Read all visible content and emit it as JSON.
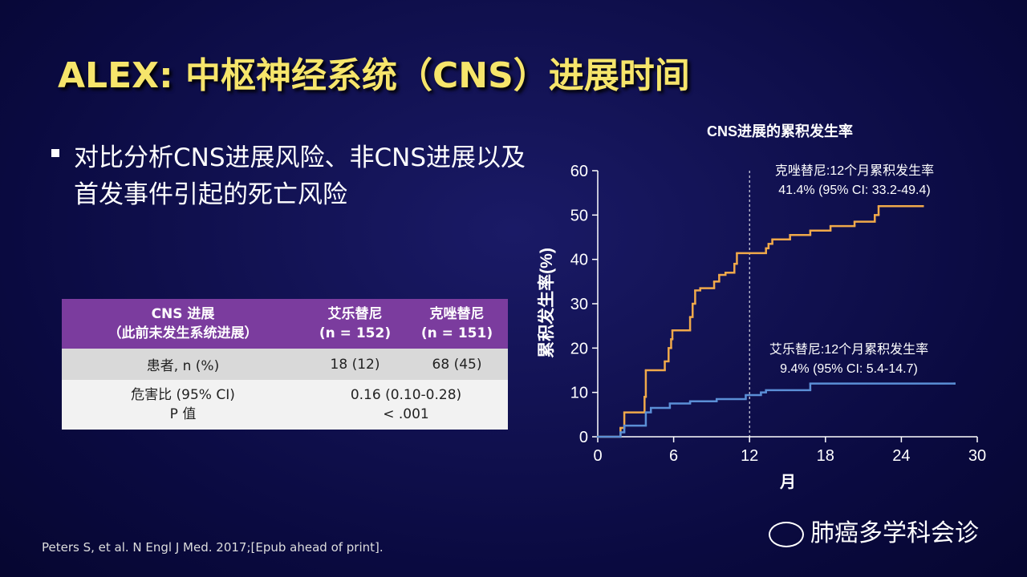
{
  "title": "ALEX: 中枢神经系统（CNS）进展时间",
  "bullet": "对比分析CNS进展风险、非CNS进展以及首发事件引起的死亡风险",
  "table": {
    "header": [
      [
        "CNS 进展",
        "（此前未发生系统进展）"
      ],
      [
        "艾乐替尼",
        "(n = 152)"
      ],
      [
        "克唑替尼",
        "(n = 151)"
      ]
    ],
    "rows": [
      [
        "患者, n (%)",
        "18 (12)",
        "68 (45)"
      ],
      [
        [
          "危害比 (95% CI)",
          "P 值"
        ],
        [
          "0.16 (0.10-0.28)",
          "< .001"
        ]
      ]
    ]
  },
  "chart_data": {
    "type": "step",
    "title": "CNS进展的累积发生率",
    "xlabel": "月",
    "ylabel": "累积发生率(%)",
    "xlim": [
      0,
      30
    ],
    "xticks": [
      0,
      6,
      12,
      18,
      24,
      30
    ],
    "ylim": [
      0,
      60
    ],
    "yticks": [
      0,
      10,
      20,
      30,
      40,
      50,
      60
    ],
    "vline_x": 12,
    "series": [
      {
        "color": "#f0a94a",
        "x": [
          0,
          1.8,
          2.1,
          3.7,
          3.8,
          5.3,
          5.6,
          5.8,
          5.9,
          7.3,
          7.5,
          7.7,
          8.1,
          9.2,
          9.6,
          10.1,
          10.8,
          11.0,
          13.3,
          13.5,
          13.8,
          15.2,
          16.8,
          18.4,
          20.3,
          21.9,
          22.2,
          25.7
        ],
        "values": [
          0,
          2,
          5.5,
          9,
          15,
          17,
          20,
          22,
          24,
          27,
          30,
          33,
          33.5,
          35,
          36.5,
          37,
          39,
          41.4,
          42.5,
          43.5,
          44.5,
          45.5,
          46.5,
          47.5,
          48.5,
          50,
          52,
          52
        ]
      },
      {
        "color": "#5b8fd6",
        "x": [
          0,
          1.8,
          2.1,
          3.8,
          4.2,
          5.7,
          7.3,
          9.4,
          11.7,
          12.9,
          13.3,
          16.8,
          28.2
        ],
        "values": [
          0,
          1,
          2.5,
          5.5,
          6.5,
          7.5,
          8,
          8.5,
          9.4,
          10,
          10.5,
          12,
          12
        ]
      }
    ],
    "annotations": [
      [
        "克唑替尼:12个月累积发生率",
        "41.4% (95% CI: 33.2-49.4)"
      ],
      [
        "艾乐替尼:12个月累积发生率",
        "9.4% (95% CI: 5.4-14.7)"
      ]
    ]
  },
  "footnote": "Peters S, et al. N Engl J Med. 2017;[Epub ahead of print].",
  "watermark": "肺癌多学科会诊"
}
